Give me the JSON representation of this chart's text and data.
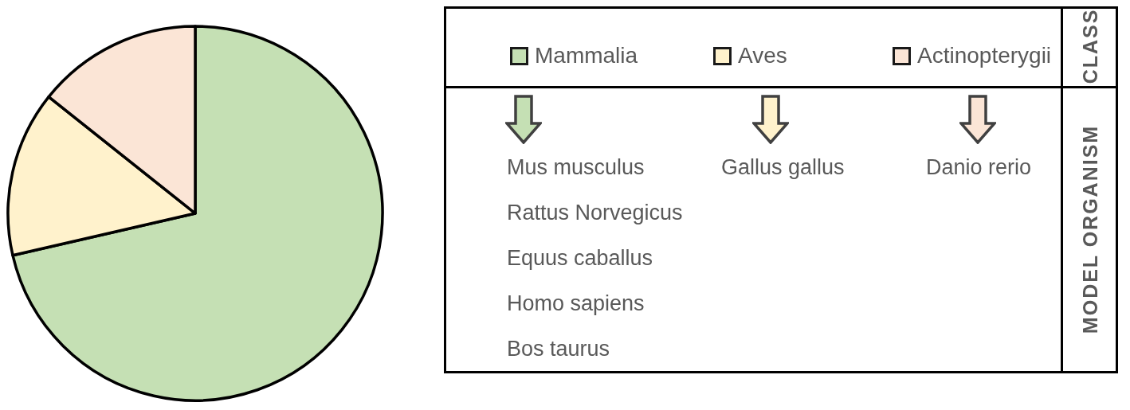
{
  "chart_data": {
    "type": "pie",
    "categories": [
      "Mammalia",
      "Aves",
      "Actinopterygii"
    ],
    "values": [
      71.4,
      14.3,
      14.3
    ],
    "colors": [
      "#c5e0b4",
      "#fff2cc",
      "#fbe5d6"
    ],
    "legend": "right",
    "legend_title": "CLASS",
    "annotations": [
      {
        "text": "Mus musculus",
        "x": "Mammalia"
      },
      {
        "text": "Rattus Norvegicus",
        "x": "Mammalia"
      },
      {
        "text": "Equus caballus",
        "x": "Mammalia"
      },
      {
        "text": "Homo sapiens",
        "x": "Mammalia"
      },
      {
        "text": "Bos taurus",
        "x": "Mammalia"
      },
      {
        "text": "Gallus gallus",
        "x": "Aves"
      },
      {
        "text": "Danio rerio",
        "x": "Actinopterygii"
      },
      "MODEL ORGANISM"
    ]
  }
}
